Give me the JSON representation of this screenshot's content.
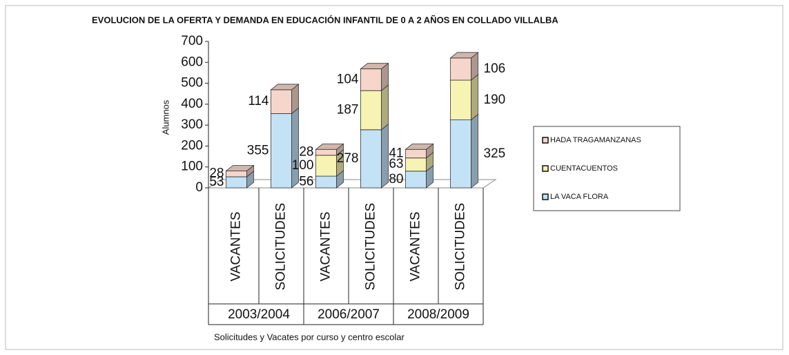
{
  "chart_data": {
    "type": "bar3d_stacked",
    "title": "EVOLUCION DE LA OFERTA Y DEMANDA EN EDUCACIÓN INFANTIL DE 0 A 2 AÑOS EN COLLADO VILLALBA",
    "y_label": "Alumnos",
    "x_label": "Solicitudes y Vacates por curso y centro escolar",
    "categories": [
      "VACANTES",
      "SOLICITUDES",
      "VACANTES",
      "SOLICITUDES",
      "VACANTES",
      "SOLICITUDES"
    ],
    "groups": [
      "2003/2004",
      "2006/2007",
      "2008/2009"
    ],
    "series": [
      {
        "name": "LA VACA FLORA",
        "color": "#c3e2f5",
        "values": [
          53,
          355,
          56,
          278,
          80,
          325
        ]
      },
      {
        "name": "CUENTACUENTOS",
        "color": "#f7f3b2",
        "values": [
          null,
          null,
          100,
          187,
          63,
          190
        ]
      },
      {
        "name": "HADA TRAGAMANZANAS",
        "color": "#f6d6ca",
        "values": [
          28,
          114,
          28,
          104,
          41,
          106
        ]
      }
    ],
    "ylim": [
      0,
      700
    ],
    "yticks": [
      0,
      100,
      200,
      300,
      400,
      500,
      600,
      700
    ],
    "legend": "right"
  }
}
